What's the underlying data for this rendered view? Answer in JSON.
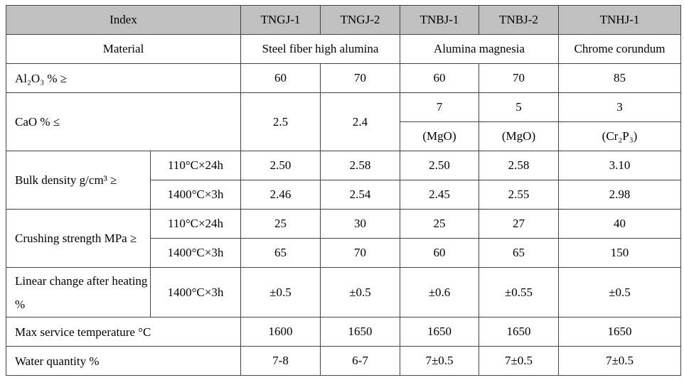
{
  "table": {
    "header": [
      "Index",
      "TNGJ-1",
      "TNGJ-2",
      "TNBJ-1",
      "TNBJ-2",
      "TNHJ-1"
    ],
    "rows": [
      [
        "Material",
        "Steel fiber high alumina",
        "Alumina magnesia",
        "Chrome corundum"
      ],
      [
        "Al₂O₃ % ≥",
        "60",
        "70",
        "60",
        "70",
        "85"
      ],
      [
        "CaO % ≤",
        "2.5",
        "2.4",
        "7",
        "5",
        "3"
      ],
      [
        "(MgO)",
        "(MgO)",
        "(Cr₂P₃)"
      ],
      [
        "Bulk density g/cm³ ≥",
        "110°C×24h",
        "2.50",
        "2.58",
        "2.50",
        "2.58",
        "3.10"
      ],
      [
        "1400°C×3h",
        "2.46",
        "2.54",
        "2.45",
        "2.55",
        "2.98"
      ],
      [
        "Crushing strength MPa ≥",
        "110°C×24h",
        "25",
        "30",
        "25",
        "27",
        "40"
      ],
      [
        "1400°C×3h",
        "65",
        "70",
        "60",
        "65",
        "150"
      ],
      [
        "Linear change after heating %",
        "1400°C×3h",
        "±0.5",
        "±0.5",
        "±0.6",
        "±0.55",
        "±0.5"
      ],
      [
        "Max service temperature °C",
        "1600",
        "1650",
        "1650",
        "1650",
        "1650"
      ],
      [
        "Water quantity %",
        "7-8",
        "6-7",
        "7±0.5",
        "7±0.5",
        "7±0.5"
      ]
    ]
  }
}
